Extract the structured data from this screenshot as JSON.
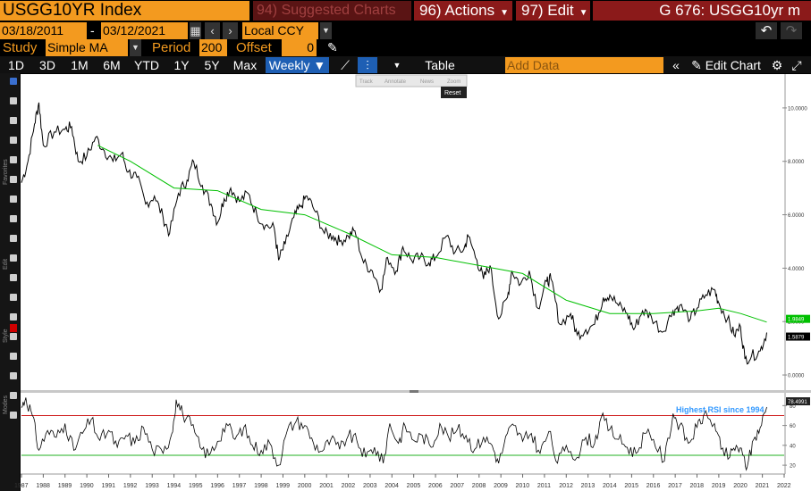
{
  "header": {
    "ticker": "USGG10YR Index",
    "suggested": "94) Suggested Charts",
    "actions": "96) Actions",
    "edit": "97) Edit",
    "title": "G 676: USGG10yr m"
  },
  "dates": {
    "start": "03/18/2011",
    "sep": "-",
    "end": "03/12/2021",
    "currency": "Local CCY"
  },
  "study": {
    "label": "Study",
    "value": "Simple MA",
    "period_label": "Period",
    "period": "200",
    "offset_label": "Offset",
    "offset": "0"
  },
  "toolbar": {
    "ranges": [
      "1D",
      "3D",
      "1M",
      "6M",
      "YTD",
      "1Y",
      "5Y",
      "Max"
    ],
    "frequency": "Weekly",
    "table": "Table",
    "add_data": "Add Data",
    "edit_chart": "Edit Chart"
  },
  "annotation_menu": {
    "items": [
      "Track",
      "Annotate",
      "News",
      "Zoom"
    ],
    "reset": "Reset"
  },
  "side_tabs": [
    "Favorites",
    "Edit",
    "Style",
    "Modes"
  ],
  "colors": {
    "orange": "#f39a1f",
    "ma": "#00c000",
    "rsi_high": "#d02020",
    "rsi_low": "#20b020",
    "rsi_note": "#3399ff"
  },
  "chart_data": [
    {
      "type": "line",
      "x_range": [
        1987,
        2022
      ],
      "ylim": [
        -0.5,
        11.2
      ],
      "y_ticks": [
        "10.0000",
        "8.0000",
        "6.0000",
        "4.0000",
        "2.0000",
        "0.0000"
      ],
      "y_tick_values": [
        10,
        8,
        6,
        4,
        2,
        0
      ],
      "last_labels": [
        {
          "text": "1.9849",
          "value": 1.9849,
          "color": "#00c000"
        },
        {
          "text": "1.5879",
          "value": 1.5879,
          "color": "#000000"
        }
      ],
      "series": [
        {
          "values": [
            [
              1987.0,
              7.2
            ],
            [
              1987.3,
              8.0
            ],
            [
              1987.6,
              9.4
            ],
            [
              1987.8,
              10.2
            ],
            [
              1988.0,
              8.6
            ],
            [
              1988.5,
              9.1
            ],
            [
              1989.0,
              9.2
            ],
            [
              1989.3,
              9.3
            ],
            [
              1989.6,
              8.0
            ],
            [
              1990.0,
              8.2
            ],
            [
              1990.4,
              8.9
            ],
            [
              1990.8,
              8.4
            ],
            [
              1991.2,
              8.0
            ],
            [
              1991.6,
              8.3
            ],
            [
              1991.9,
              7.6
            ],
            [
              1992.3,
              7.4
            ],
            [
              1992.7,
              6.4
            ],
            [
              1993.1,
              6.7
            ],
            [
              1993.5,
              5.9
            ],
            [
              1993.8,
              5.3
            ],
            [
              1994.2,
              6.8
            ],
            [
              1994.6,
              7.3
            ],
            [
              1994.9,
              8.0
            ],
            [
              1995.3,
              7.1
            ],
            [
              1995.7,
              6.4
            ],
            [
              1996.0,
              5.7
            ],
            [
              1996.3,
              6.6
            ],
            [
              1996.6,
              7.0
            ],
            [
              1997.0,
              6.5
            ],
            [
              1997.4,
              6.8
            ],
            [
              1997.8,
              6.0
            ],
            [
              1998.2,
              5.6
            ],
            [
              1998.6,
              5.5
            ],
            [
              1998.8,
              4.3
            ],
            [
              1999.1,
              4.9
            ],
            [
              1999.5,
              5.9
            ],
            [
              1999.8,
              6.3
            ],
            [
              2000.1,
              6.7
            ],
            [
              2000.5,
              6.1
            ],
            [
              2000.9,
              5.3
            ],
            [
              2001.3,
              5.2
            ],
            [
              2001.6,
              5.0
            ],
            [
              2002.0,
              5.2
            ],
            [
              2002.3,
              5.4
            ],
            [
              2002.7,
              4.2
            ],
            [
              2003.1,
              3.9
            ],
            [
              2003.5,
              3.2
            ],
            [
              2003.8,
              4.4
            ],
            [
              2004.2,
              3.9
            ],
            [
              2004.5,
              4.8
            ],
            [
              2004.9,
              4.3
            ],
            [
              2005.3,
              4.4
            ],
            [
              2005.7,
              4.2
            ],
            [
              2006.0,
              4.4
            ],
            [
              2006.5,
              5.2
            ],
            [
              2006.9,
              4.6
            ],
            [
              2007.3,
              4.7
            ],
            [
              2007.5,
              5.2
            ],
            [
              2007.9,
              4.3
            ],
            [
              2008.2,
              3.6
            ],
            [
              2008.5,
              4.1
            ],
            [
              2008.9,
              2.1
            ],
            [
              2009.3,
              2.9
            ],
            [
              2009.5,
              3.9
            ],
            [
              2009.9,
              3.4
            ],
            [
              2010.3,
              3.9
            ],
            [
              2010.7,
              2.5
            ],
            [
              2011.1,
              3.5
            ],
            [
              2011.3,
              3.6
            ],
            [
              2011.7,
              1.9
            ],
            [
              2012.2,
              2.3
            ],
            [
              2012.5,
              1.5
            ],
            [
              2012.9,
              1.7
            ],
            [
              2013.3,
              1.9
            ],
            [
              2013.7,
              2.9
            ],
            [
              2014.0,
              3.0
            ],
            [
              2014.4,
              2.6
            ],
            [
              2014.8,
              2.3
            ],
            [
              2015.1,
              1.7
            ],
            [
              2015.5,
              2.4
            ],
            [
              2015.9,
              2.2
            ],
            [
              2016.4,
              1.6
            ],
            [
              2016.9,
              2.4
            ],
            [
              2017.2,
              2.6
            ],
            [
              2017.7,
              2.1
            ],
            [
              2018.0,
              2.5
            ],
            [
              2018.4,
              3.0
            ],
            [
              2018.8,
              3.2
            ],
            [
              2019.0,
              2.7
            ],
            [
              2019.4,
              2.1
            ],
            [
              2019.7,
              1.5
            ],
            [
              2020.0,
              1.8
            ],
            [
              2020.2,
              0.6
            ],
            [
              2020.5,
              0.7
            ],
            [
              2020.9,
              0.9
            ],
            [
              2021.2,
              1.59
            ]
          ],
          "color": "#000000"
        },
        {
          "values": [
            [
              1990.5,
              8.6
            ],
            [
              1992,
              8.0
            ],
            [
              1994,
              7.0
            ],
            [
              1996,
              6.9
            ],
            [
              1998,
              6.2
            ],
            [
              2000,
              6.0
            ],
            [
              2002,
              5.3
            ],
            [
              2004,
              4.5
            ],
            [
              2006,
              4.4
            ],
            [
              2008,
              4.1
            ],
            [
              2010,
              3.8
            ],
            [
              2012,
              2.8
            ],
            [
              2014,
              2.3
            ],
            [
              2016,
              2.3
            ],
            [
              2018,
              2.4
            ],
            [
              2019,
              2.5
            ],
            [
              2020,
              2.3
            ],
            [
              2021.2,
              1.98
            ]
          ],
          "color": "#00c000"
        }
      ]
    },
    {
      "type": "line",
      "ylim": [
        12,
        92
      ],
      "y_ticks": [
        "80",
        "60",
        "40",
        "20"
      ],
      "y_tick_values": [
        80,
        60,
        40,
        20
      ],
      "last_label": "78.4991",
      "last_value": 78.4991,
      "annotation": "Highest RSI since 1994",
      "reference_lines": [
        70,
        30
      ],
      "x_ticks": [
        "1987",
        "1988",
        "1989",
        "1990",
        "1991",
        "1992",
        "1993",
        "1994",
        "1995",
        "1996",
        "1997",
        "1998",
        "1999",
        "2000",
        "2001",
        "2002",
        "2003",
        "2004",
        "2005",
        "2006",
        "2007",
        "2008",
        "2009",
        "2010",
        "2011",
        "2012",
        "2013",
        "2014",
        "2015",
        "2016",
        "2017",
        "2018",
        "2019",
        "2020",
        "2021",
        "2022"
      ],
      "series": [
        {
          "values": [
            [
              1987.0,
              78
            ],
            [
              1987.2,
              88
            ],
            [
              1987.5,
              70
            ],
            [
              1987.8,
              35
            ],
            [
              1988.2,
              55
            ],
            [
              1988.6,
              48
            ],
            [
              1989.0,
              62
            ],
            [
              1989.4,
              35
            ],
            [
              1989.8,
              52
            ],
            [
              1990.2,
              66
            ],
            [
              1990.6,
              45
            ],
            [
              1991.0,
              55
            ],
            [
              1991.4,
              38
            ],
            [
              1991.8,
              50
            ],
            [
              1992.2,
              42
            ],
            [
              1992.6,
              58
            ],
            [
              1993.0,
              36
            ],
            [
              1993.5,
              32
            ],
            [
              1993.9,
              52
            ],
            [
              1994.1,
              86
            ],
            [
              1994.4,
              72
            ],
            [
              1994.8,
              60
            ],
            [
              1995.2,
              38
            ],
            [
              1995.6,
              30
            ],
            [
              1996.0,
              44
            ],
            [
              1996.4,
              62
            ],
            [
              1996.8,
              46
            ],
            [
              1997.2,
              58
            ],
            [
              1997.6,
              40
            ],
            [
              1998.0,
              35
            ],
            [
              1998.4,
              42
            ],
            [
              1998.8,
              20
            ],
            [
              1999.2,
              55
            ],
            [
              1999.6,
              64
            ],
            [
              2000.0,
              60
            ],
            [
              2000.4,
              42
            ],
            [
              2000.8,
              34
            ],
            [
              2001.2,
              46
            ],
            [
              2001.6,
              36
            ],
            [
              2002.0,
              50
            ],
            [
              2002.4,
              44
            ],
            [
              2002.8,
              28
            ],
            [
              2003.2,
              38
            ],
            [
              2003.6,
              22
            ],
            [
              2003.9,
              62
            ],
            [
              2004.3,
              42
            ],
            [
              2004.6,
              60
            ],
            [
              2005.0,
              45
            ],
            [
              2005.4,
              50
            ],
            [
              2005.8,
              38
            ],
            [
              2006.2,
              62
            ],
            [
              2006.6,
              48
            ],
            [
              2007.0,
              56
            ],
            [
              2007.4,
              50
            ],
            [
              2007.8,
              36
            ],
            [
              2008.2,
              48
            ],
            [
              2008.6,
              40
            ],
            [
              2008.9,
              22
            ],
            [
              2009.3,
              52
            ],
            [
              2009.6,
              60
            ],
            [
              2010.0,
              44
            ],
            [
              2010.4,
              52
            ],
            [
              2010.8,
              32
            ],
            [
              2011.2,
              54
            ],
            [
              2011.6,
              22
            ],
            [
              2012.0,
              40
            ],
            [
              2012.5,
              28
            ],
            [
              2012.9,
              48
            ],
            [
              2013.3,
              42
            ],
            [
              2013.6,
              68
            ],
            [
              2014.0,
              56
            ],
            [
              2014.4,
              46
            ],
            [
              2014.8,
              38
            ],
            [
              2015.2,
              32
            ],
            [
              2015.6,
              52
            ],
            [
              2016.0,
              46
            ],
            [
              2016.5,
              24
            ],
            [
              2016.9,
              72
            ],
            [
              2017.2,
              60
            ],
            [
              2017.6,
              42
            ],
            [
              2018.0,
              58
            ],
            [
              2018.3,
              70
            ],
            [
              2018.8,
              62
            ],
            [
              2019.1,
              36
            ],
            [
              2019.5,
              28
            ],
            [
              2019.8,
              40
            ],
            [
              2020.1,
              30
            ],
            [
              2020.3,
              18
            ],
            [
              2020.6,
              46
            ],
            [
              2020.9,
              58
            ],
            [
              2021.2,
              78.5
            ]
          ],
          "color": "#000000"
        }
      ]
    }
  ]
}
